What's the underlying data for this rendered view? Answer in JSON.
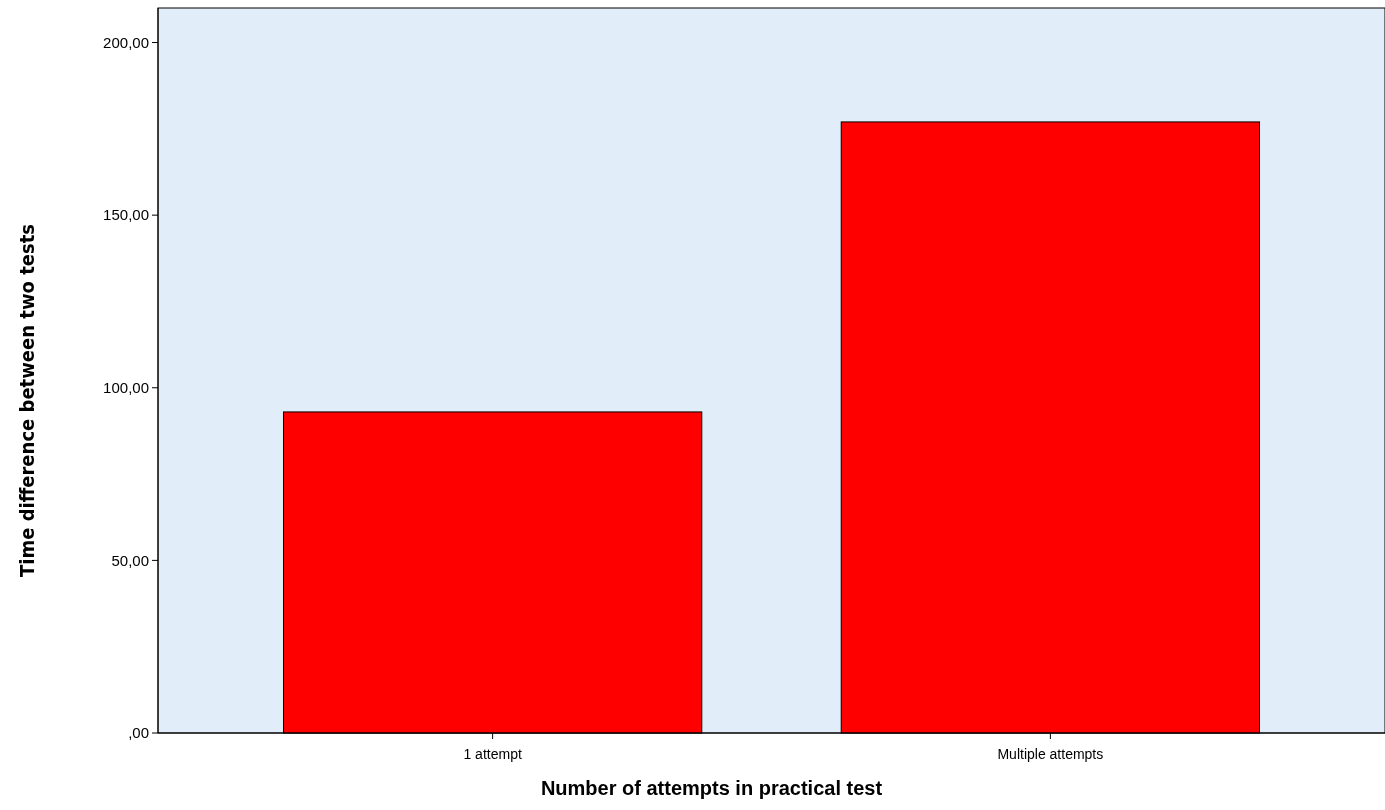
{
  "chart_data": {
    "type": "bar",
    "xlabel": "Number of attempts in practical test",
    "ylabel": "Time difference between two tests",
    "categories": [
      "1 attempt",
      "Multiple attempts"
    ],
    "values": [
      93,
      177
    ],
    "color": "#ff0000",
    "ylim": [
      0,
      210
    ],
    "yticks": [
      {
        "value": 0,
        "label": ",00"
      },
      {
        "value": 50,
        "label": "50,00"
      },
      {
        "value": 100,
        "label": "100,00"
      },
      {
        "value": 150,
        "label": "150,00"
      },
      {
        "value": 200,
        "label": "200,00"
      }
    ],
    "grid": false
  }
}
